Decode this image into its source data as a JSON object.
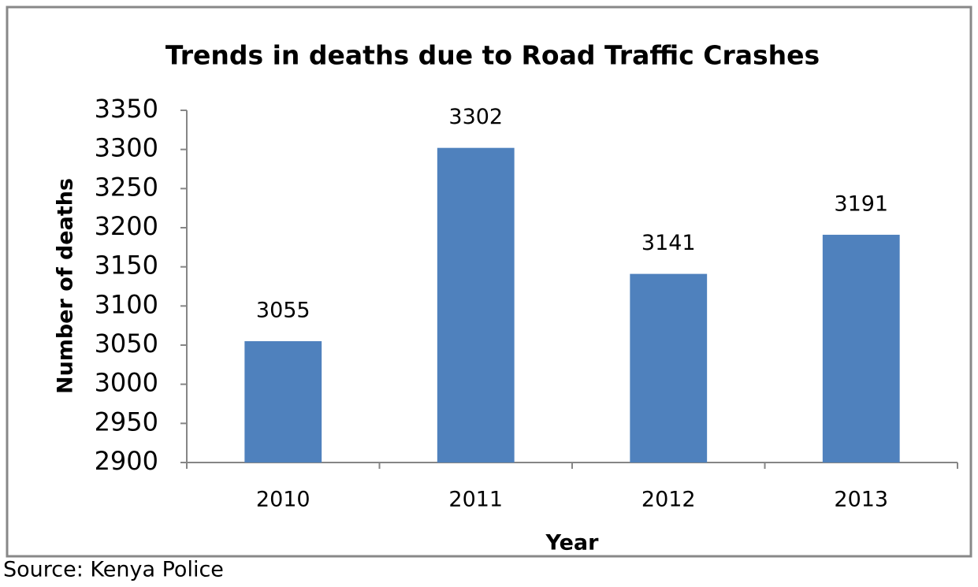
{
  "chart_data": {
    "type": "bar",
    "title": "Trends in deaths due to Road Traffic Crashes",
    "x_label": "Year",
    "y_label": "Number of deaths",
    "categories": [
      "2010",
      "2011",
      "2012",
      "2013"
    ],
    "values": [
      3055,
      3302,
      3141,
      3191
    ],
    "color": "#4f81bd",
    "ylim": [
      2900,
      3350
    ],
    "yticks": [
      2900,
      2950,
      3000,
      3050,
      3100,
      3150,
      3200,
      3250,
      3300,
      3350
    ],
    "grid": false,
    "source": "Source: Kenya Police"
  }
}
